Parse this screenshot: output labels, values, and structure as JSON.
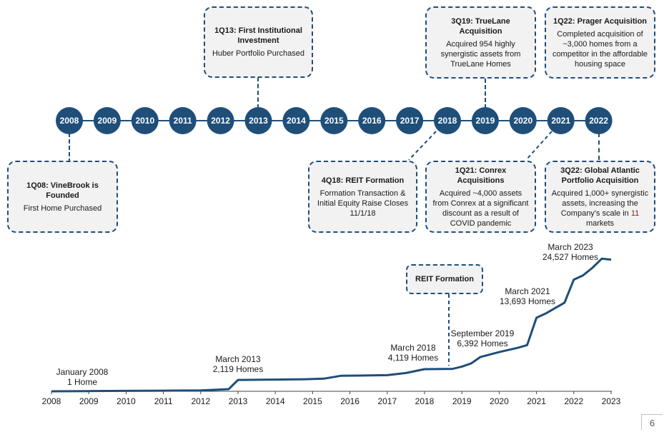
{
  "timeline": {
    "years": [
      "2008",
      "2009",
      "2010",
      "2011",
      "2012",
      "2013",
      "2014",
      "2015",
      "2016",
      "2017",
      "2018",
      "2019",
      "2020",
      "2021",
      "2022"
    ],
    "colors": {
      "accent": "#1f4e79",
      "box_fill": "#f2f2f2",
      "highlight_text": "#8b1a1a"
    },
    "events_top": [
      {
        "title": "1Q13: First Institutional Investment",
        "body": "Huber Portfolio Purchased"
      },
      {
        "title": "3Q19: TrueLane Acquisition",
        "body": "Acquired 954 highly synergistic assets from TrueLane Homes"
      },
      {
        "title": "1Q22: Prager Acquisition",
        "body": "Completed acquisition of ~3,000 homes from a competitor in the affordable housing space"
      }
    ],
    "events_bottom": [
      {
        "title": "1Q08: VineBrook is Founded",
        "body": "First Home Purchased"
      },
      {
        "title": "4Q18: REIT Formation",
        "body": "Formation Transaction & Initial Equity Raise Closes 11/1/18"
      },
      {
        "title": "1Q21: Conrex Acquisitions",
        "body": "Acquired ~4,000 assets from Conrex at a significant discount as a result of COVID pandemic"
      },
      {
        "title": "3Q22: Global Atlantic Portfolio Acquisition",
        "body": "Acquired 1,000+ synergistic assets, increasing the Company's scale in ",
        "highlight": "11",
        "body_end": " markets"
      }
    ]
  },
  "chart_data": {
    "type": "line",
    "title": "",
    "xlabel": "",
    "ylabel": "",
    "x_ticks": [
      "2008",
      "2009",
      "2010",
      "2011",
      "2012",
      "2013",
      "2014",
      "2015",
      "2016",
      "2017",
      "2018",
      "2019",
      "2020",
      "2021",
      "2022",
      "2023"
    ],
    "xlim": [
      2008,
      2023
    ],
    "ylim": [
      0,
      25000
    ],
    "grid": false,
    "series": [
      {
        "color": "#1f4e79",
        "points": [
          [
            2008.0,
            1
          ],
          [
            2009.0,
            40
          ],
          [
            2010.0,
            80
          ],
          [
            2011.0,
            120
          ],
          [
            2012.0,
            170
          ],
          [
            2012.75,
            400
          ],
          [
            2013.0,
            2119
          ],
          [
            2014.0,
            2180
          ],
          [
            2014.8,
            2250
          ],
          [
            2015.3,
            2350
          ],
          [
            2015.75,
            2880
          ],
          [
            2016.5,
            2950
          ],
          [
            2017.0,
            3000
          ],
          [
            2017.5,
            3400
          ],
          [
            2018.0,
            4119
          ],
          [
            2018.75,
            4180
          ],
          [
            2019.0,
            4600
          ],
          [
            2019.25,
            5200
          ],
          [
            2019.5,
            6392
          ],
          [
            2020.0,
            7300
          ],
          [
            2020.5,
            8100
          ],
          [
            2020.75,
            8600
          ],
          [
            2021.0,
            13693
          ],
          [
            2021.25,
            14500
          ],
          [
            2021.5,
            15500
          ],
          [
            2021.75,
            16500
          ],
          [
            2022.0,
            20800
          ],
          [
            2022.25,
            21600
          ],
          [
            2022.5,
            23000
          ],
          [
            2022.75,
            24700
          ],
          [
            2023.0,
            24527
          ]
        ]
      }
    ],
    "annotations": [
      {
        "lines": [
          "January 2008",
          "1 Home"
        ]
      },
      {
        "lines": [
          "March 2013",
          "2,119 Homes"
        ]
      },
      {
        "lines": [
          "March 2018",
          "4,119 Homes"
        ]
      },
      {
        "lines": [
          "September 2019",
          "6,392 Homes"
        ]
      },
      {
        "lines": [
          "March 2021",
          "13,693 Homes"
        ]
      },
      {
        "lines": [
          "March 2023",
          "24,527 Homes"
        ]
      }
    ],
    "callout": "REIT Formation"
  },
  "page_number": "6"
}
